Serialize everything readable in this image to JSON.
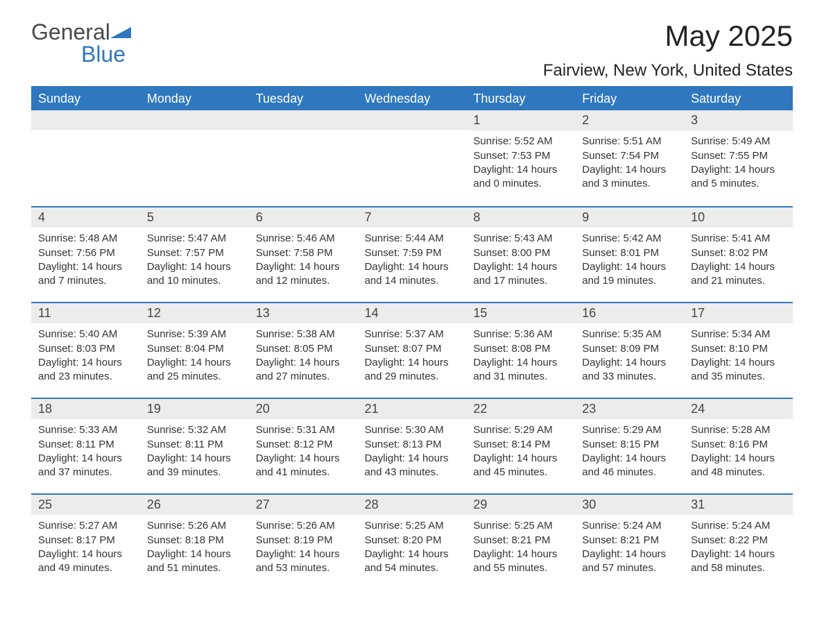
{
  "logo": {
    "text1": "General",
    "text2": "Blue"
  },
  "title": "May 2025",
  "location": "Fairview, New York, United States",
  "style": {
    "accent_color": "#2f78bf",
    "header_bg": "#2f78bf",
    "header_text_color": "#ffffff",
    "day_num_bg": "#ececec",
    "body_bg": "#ffffff",
    "text_color": "#333333",
    "title_fontsize_pt": 32,
    "location_fontsize_pt": 18,
    "weekday_fontsize_pt": 13,
    "daynum_fontsize_pt": 13,
    "detail_fontsize_pt": 11
  },
  "weekdays": [
    "Sunday",
    "Monday",
    "Tuesday",
    "Wednesday",
    "Thursday",
    "Friday",
    "Saturday"
  ],
  "weeks": [
    [
      null,
      null,
      null,
      null,
      {
        "d": "1",
        "sr": "Sunrise: 5:52 AM",
        "ss": "Sunset: 7:53 PM",
        "dl": "Daylight: 14 hours and 0 minutes."
      },
      {
        "d": "2",
        "sr": "Sunrise: 5:51 AM",
        "ss": "Sunset: 7:54 PM",
        "dl": "Daylight: 14 hours and 3 minutes."
      },
      {
        "d": "3",
        "sr": "Sunrise: 5:49 AM",
        "ss": "Sunset: 7:55 PM",
        "dl": "Daylight: 14 hours and 5 minutes."
      }
    ],
    [
      {
        "d": "4",
        "sr": "Sunrise: 5:48 AM",
        "ss": "Sunset: 7:56 PM",
        "dl": "Daylight: 14 hours and 7 minutes."
      },
      {
        "d": "5",
        "sr": "Sunrise: 5:47 AM",
        "ss": "Sunset: 7:57 PM",
        "dl": "Daylight: 14 hours and 10 minutes."
      },
      {
        "d": "6",
        "sr": "Sunrise: 5:46 AM",
        "ss": "Sunset: 7:58 PM",
        "dl": "Daylight: 14 hours and 12 minutes."
      },
      {
        "d": "7",
        "sr": "Sunrise: 5:44 AM",
        "ss": "Sunset: 7:59 PM",
        "dl": "Daylight: 14 hours and 14 minutes."
      },
      {
        "d": "8",
        "sr": "Sunrise: 5:43 AM",
        "ss": "Sunset: 8:00 PM",
        "dl": "Daylight: 14 hours and 17 minutes."
      },
      {
        "d": "9",
        "sr": "Sunrise: 5:42 AM",
        "ss": "Sunset: 8:01 PM",
        "dl": "Daylight: 14 hours and 19 minutes."
      },
      {
        "d": "10",
        "sr": "Sunrise: 5:41 AM",
        "ss": "Sunset: 8:02 PM",
        "dl": "Daylight: 14 hours and 21 minutes."
      }
    ],
    [
      {
        "d": "11",
        "sr": "Sunrise: 5:40 AM",
        "ss": "Sunset: 8:03 PM",
        "dl": "Daylight: 14 hours and 23 minutes."
      },
      {
        "d": "12",
        "sr": "Sunrise: 5:39 AM",
        "ss": "Sunset: 8:04 PM",
        "dl": "Daylight: 14 hours and 25 minutes."
      },
      {
        "d": "13",
        "sr": "Sunrise: 5:38 AM",
        "ss": "Sunset: 8:05 PM",
        "dl": "Daylight: 14 hours and 27 minutes."
      },
      {
        "d": "14",
        "sr": "Sunrise: 5:37 AM",
        "ss": "Sunset: 8:07 PM",
        "dl": "Daylight: 14 hours and 29 minutes."
      },
      {
        "d": "15",
        "sr": "Sunrise: 5:36 AM",
        "ss": "Sunset: 8:08 PM",
        "dl": "Daylight: 14 hours and 31 minutes."
      },
      {
        "d": "16",
        "sr": "Sunrise: 5:35 AM",
        "ss": "Sunset: 8:09 PM",
        "dl": "Daylight: 14 hours and 33 minutes."
      },
      {
        "d": "17",
        "sr": "Sunrise: 5:34 AM",
        "ss": "Sunset: 8:10 PM",
        "dl": "Daylight: 14 hours and 35 minutes."
      }
    ],
    [
      {
        "d": "18",
        "sr": "Sunrise: 5:33 AM",
        "ss": "Sunset: 8:11 PM",
        "dl": "Daylight: 14 hours and 37 minutes."
      },
      {
        "d": "19",
        "sr": "Sunrise: 5:32 AM",
        "ss": "Sunset: 8:11 PM",
        "dl": "Daylight: 14 hours and 39 minutes."
      },
      {
        "d": "20",
        "sr": "Sunrise: 5:31 AM",
        "ss": "Sunset: 8:12 PM",
        "dl": "Daylight: 14 hours and 41 minutes."
      },
      {
        "d": "21",
        "sr": "Sunrise: 5:30 AM",
        "ss": "Sunset: 8:13 PM",
        "dl": "Daylight: 14 hours and 43 minutes."
      },
      {
        "d": "22",
        "sr": "Sunrise: 5:29 AM",
        "ss": "Sunset: 8:14 PM",
        "dl": "Daylight: 14 hours and 45 minutes."
      },
      {
        "d": "23",
        "sr": "Sunrise: 5:29 AM",
        "ss": "Sunset: 8:15 PM",
        "dl": "Daylight: 14 hours and 46 minutes."
      },
      {
        "d": "24",
        "sr": "Sunrise: 5:28 AM",
        "ss": "Sunset: 8:16 PM",
        "dl": "Daylight: 14 hours and 48 minutes."
      }
    ],
    [
      {
        "d": "25",
        "sr": "Sunrise: 5:27 AM",
        "ss": "Sunset: 8:17 PM",
        "dl": "Daylight: 14 hours and 49 minutes."
      },
      {
        "d": "26",
        "sr": "Sunrise: 5:26 AM",
        "ss": "Sunset: 8:18 PM",
        "dl": "Daylight: 14 hours and 51 minutes."
      },
      {
        "d": "27",
        "sr": "Sunrise: 5:26 AM",
        "ss": "Sunset: 8:19 PM",
        "dl": "Daylight: 14 hours and 53 minutes."
      },
      {
        "d": "28",
        "sr": "Sunrise: 5:25 AM",
        "ss": "Sunset: 8:20 PM",
        "dl": "Daylight: 14 hours and 54 minutes."
      },
      {
        "d": "29",
        "sr": "Sunrise: 5:25 AM",
        "ss": "Sunset: 8:21 PM",
        "dl": "Daylight: 14 hours and 55 minutes."
      },
      {
        "d": "30",
        "sr": "Sunrise: 5:24 AM",
        "ss": "Sunset: 8:21 PM",
        "dl": "Daylight: 14 hours and 57 minutes."
      },
      {
        "d": "31",
        "sr": "Sunrise: 5:24 AM",
        "ss": "Sunset: 8:22 PM",
        "dl": "Daylight: 14 hours and 58 minutes."
      }
    ]
  ]
}
